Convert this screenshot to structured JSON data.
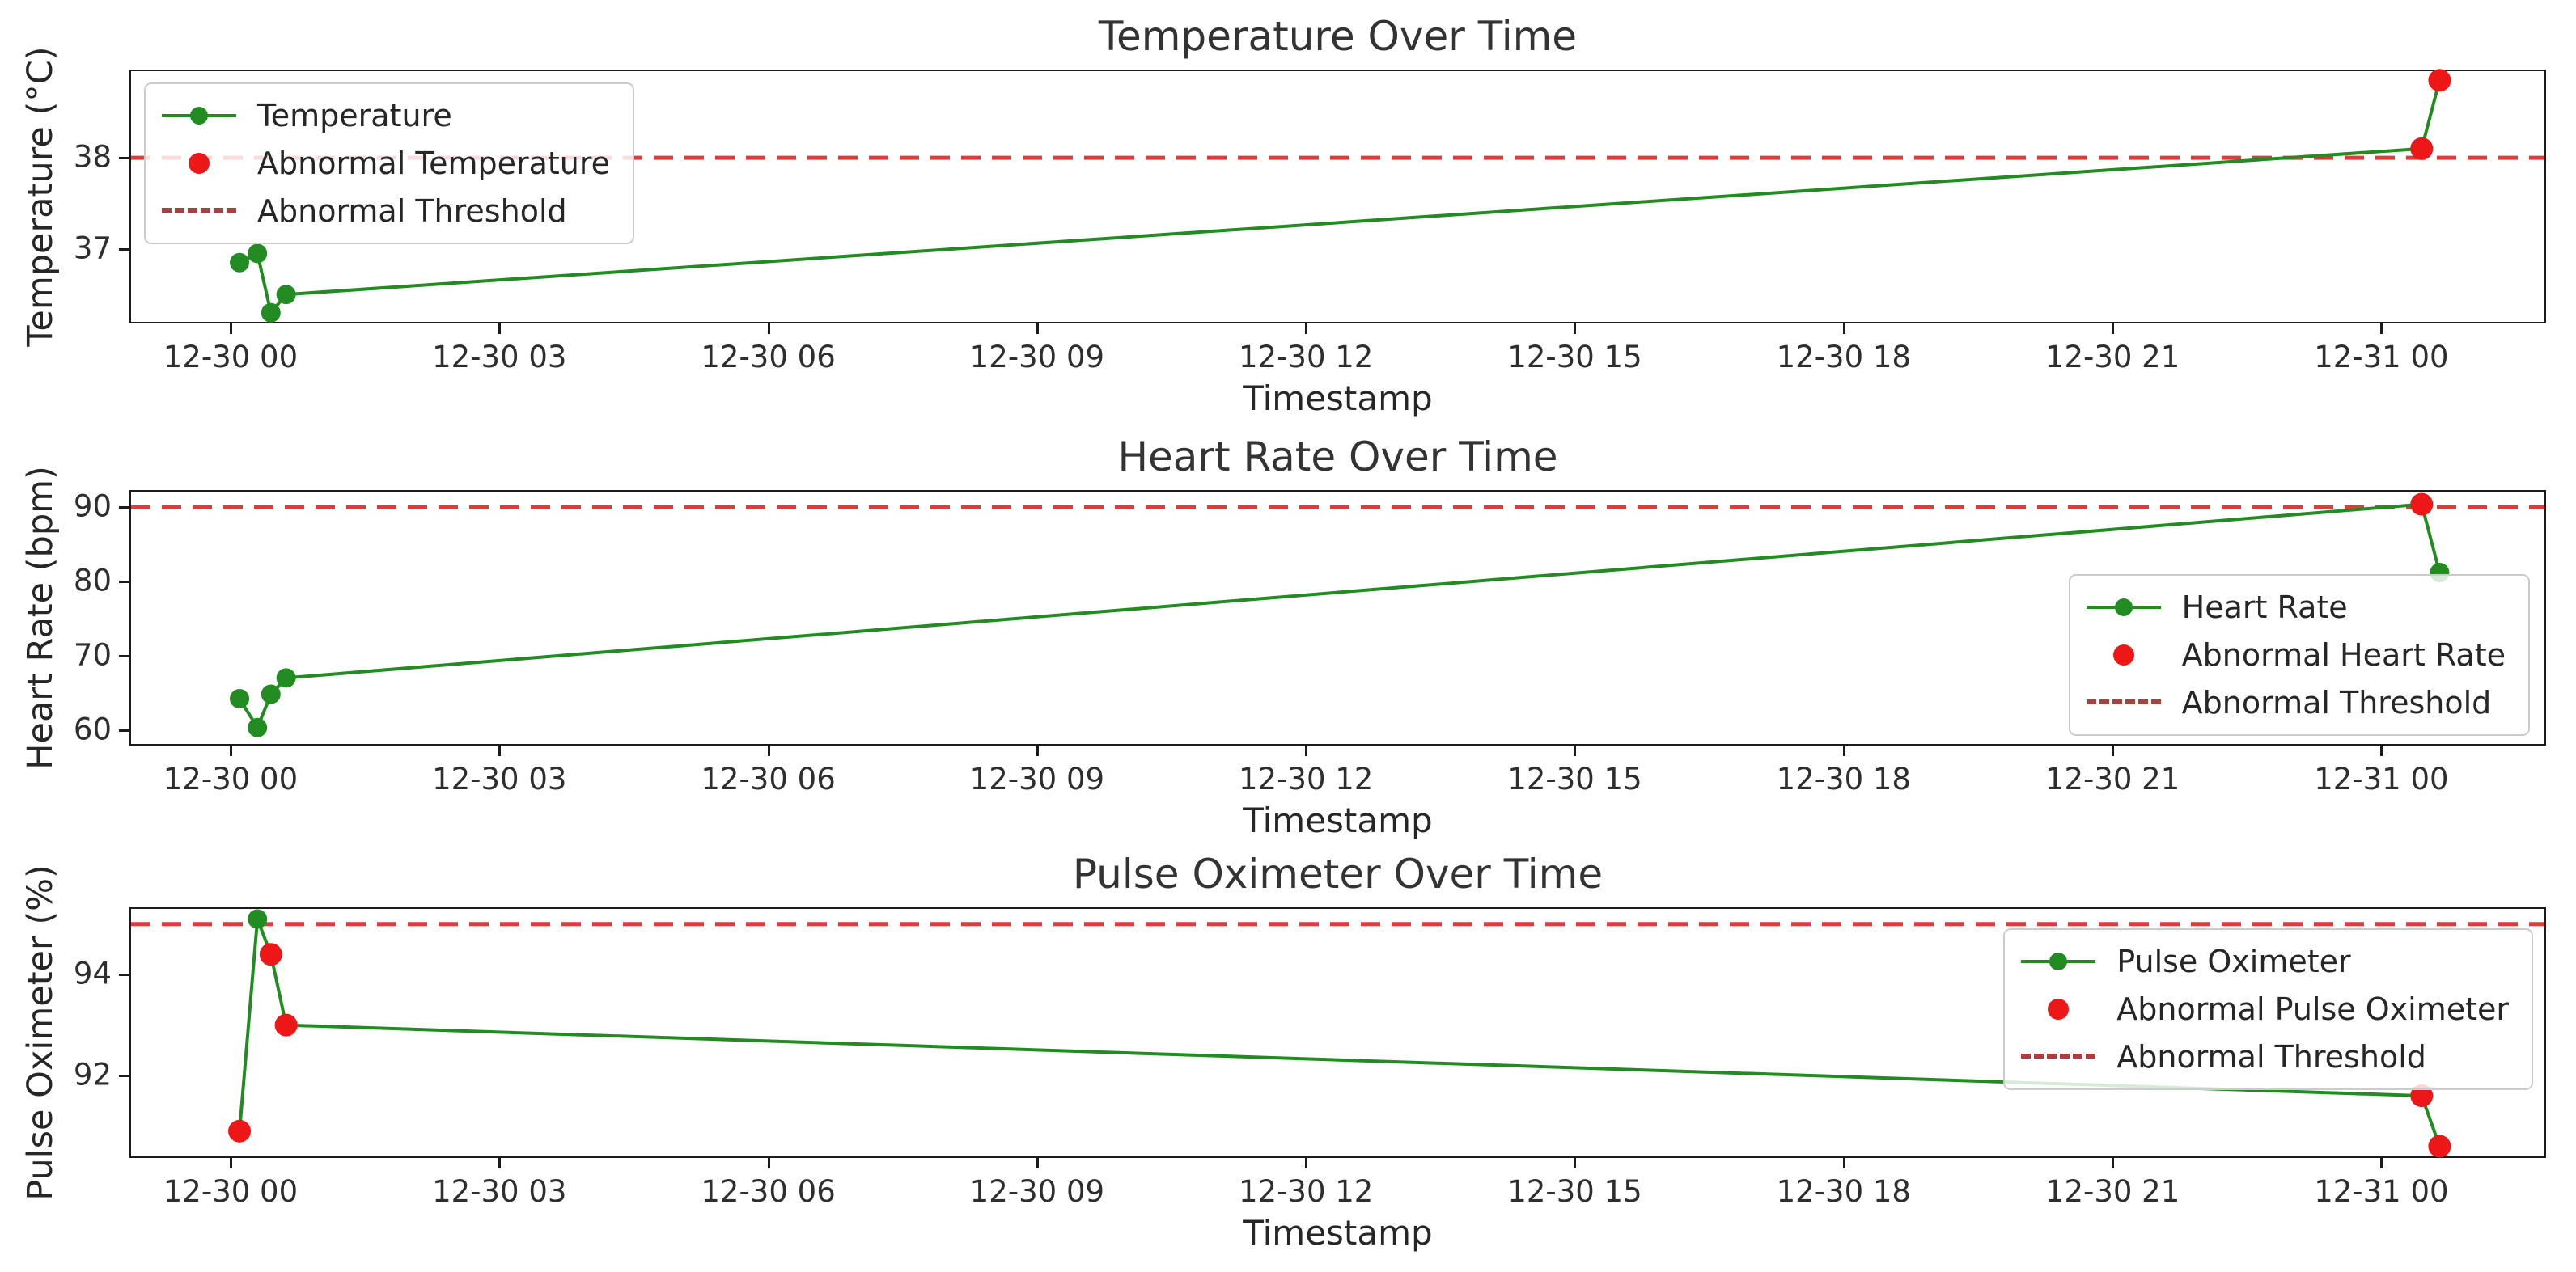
{
  "figure": {
    "background": "#ffffff",
    "series_color": "#228B22",
    "abnormal_color": "#ee1717",
    "threshold_line_color": "#dd3c3c",
    "legend_threshold_swatch_color": "#a84040"
  },
  "chart_data": [
    {
      "type": "line",
      "title": "Temperature Over Time",
      "xlabel": "Timestamp",
      "ylabel": "Temperature (°C)",
      "timestamps": [
        "12-30 00:06",
        "12-30 00:18",
        "12-30 00:27",
        "12-30 00:37",
        "12-31 00:27",
        "12-31 00:39"
      ],
      "x_hours": [
        0.1,
        0.3,
        0.45,
        0.62,
        24.45,
        24.65
      ],
      "values": [
        36.85,
        36.95,
        36.3,
        36.5,
        38.1,
        38.85
      ],
      "abnormal_indices": [
        4,
        5
      ],
      "threshold": 38,
      "ylim": [
        36.2,
        38.95
      ],
      "xlim_hours": [
        -1.11,
        25.82
      ],
      "yticks": [
        37,
        38
      ],
      "xticks": {
        "hours": [
          0,
          3,
          6,
          9,
          12,
          15,
          18,
          21,
          24
        ],
        "labels": [
          "12-30 00",
          "12-30 03",
          "12-30 06",
          "12-30 09",
          "12-30 12",
          "12-30 15",
          "12-30 18",
          "12-30 21",
          "12-31 00"
        ]
      },
      "grid": false,
      "legend": {
        "loc": "upper-left",
        "entries": [
          {
            "label": "Temperature",
            "type": "line-marker"
          },
          {
            "label": "Abnormal Temperature",
            "type": "marker"
          },
          {
            "label": "Abnormal Threshold",
            "type": "dashed-line"
          }
        ]
      }
    },
    {
      "type": "line",
      "title": "Heart Rate Over Time",
      "xlabel": "Timestamp",
      "ylabel": "Heart Rate (bpm)",
      "timestamps": [
        "12-30 00:06",
        "12-30 00:18",
        "12-30 00:27",
        "12-30 00:37",
        "12-31 00:27",
        "12-31 00:39"
      ],
      "x_hours": [
        0.1,
        0.3,
        0.45,
        0.62,
        24.45,
        24.65
      ],
      "values": [
        64.2,
        60.3,
        64.8,
        67.0,
        90.4,
        81.2
      ],
      "abnormal_indices": [
        4
      ],
      "threshold": 90,
      "ylim": [
        58.1,
        92.1
      ],
      "xlim_hours": [
        -1.11,
        25.82
      ],
      "yticks": [
        60,
        70,
        80,
        90
      ],
      "xticks": {
        "hours": [
          0,
          3,
          6,
          9,
          12,
          15,
          18,
          21,
          24
        ],
        "labels": [
          "12-30 00",
          "12-30 03",
          "12-30 06",
          "12-30 09",
          "12-30 12",
          "12-30 15",
          "12-30 18",
          "12-30 21",
          "12-31 00"
        ]
      },
      "grid": false,
      "legend": {
        "loc": "lower-right",
        "entries": [
          {
            "label": "Heart Rate",
            "type": "line-marker"
          },
          {
            "label": "Abnormal Heart Rate",
            "type": "marker"
          },
          {
            "label": "Abnormal Threshold",
            "type": "dashed-line"
          }
        ]
      }
    },
    {
      "type": "line",
      "title": "Pulse Oximeter Over Time",
      "xlabel": "Timestamp",
      "ylabel": "Pulse Oximeter (%)",
      "timestamps": [
        "12-30 00:06",
        "12-30 00:18",
        "12-30 00:27",
        "12-30 00:37",
        "12-31 00:27",
        "12-31 00:39"
      ],
      "x_hours": [
        0.1,
        0.3,
        0.45,
        0.62,
        24.45,
        24.65
      ],
      "values": [
        90.9,
        95.1,
        94.4,
        93.0,
        91.6,
        90.6
      ],
      "abnormal_indices": [
        0,
        2,
        3,
        4,
        5
      ],
      "threshold": 95,
      "ylim": [
        90.4,
        95.3
      ],
      "xlim_hours": [
        -1.11,
        25.82
      ],
      "yticks": [
        92,
        94
      ],
      "xticks": {
        "hours": [
          0,
          3,
          6,
          9,
          12,
          15,
          18,
          21,
          24
        ],
        "labels": [
          "12-30 00",
          "12-30 03",
          "12-30 06",
          "12-30 09",
          "12-30 12",
          "12-30 15",
          "12-30 18",
          "12-30 21",
          "12-31 00"
        ]
      },
      "grid": false,
      "legend": {
        "loc": "upper-right",
        "entries": [
          {
            "label": "Pulse Oximeter",
            "type": "line-marker"
          },
          {
            "label": "Abnormal Pulse Oximeter",
            "type": "marker"
          },
          {
            "label": "Abnormal Threshold",
            "type": "dashed-line"
          }
        ]
      }
    }
  ]
}
